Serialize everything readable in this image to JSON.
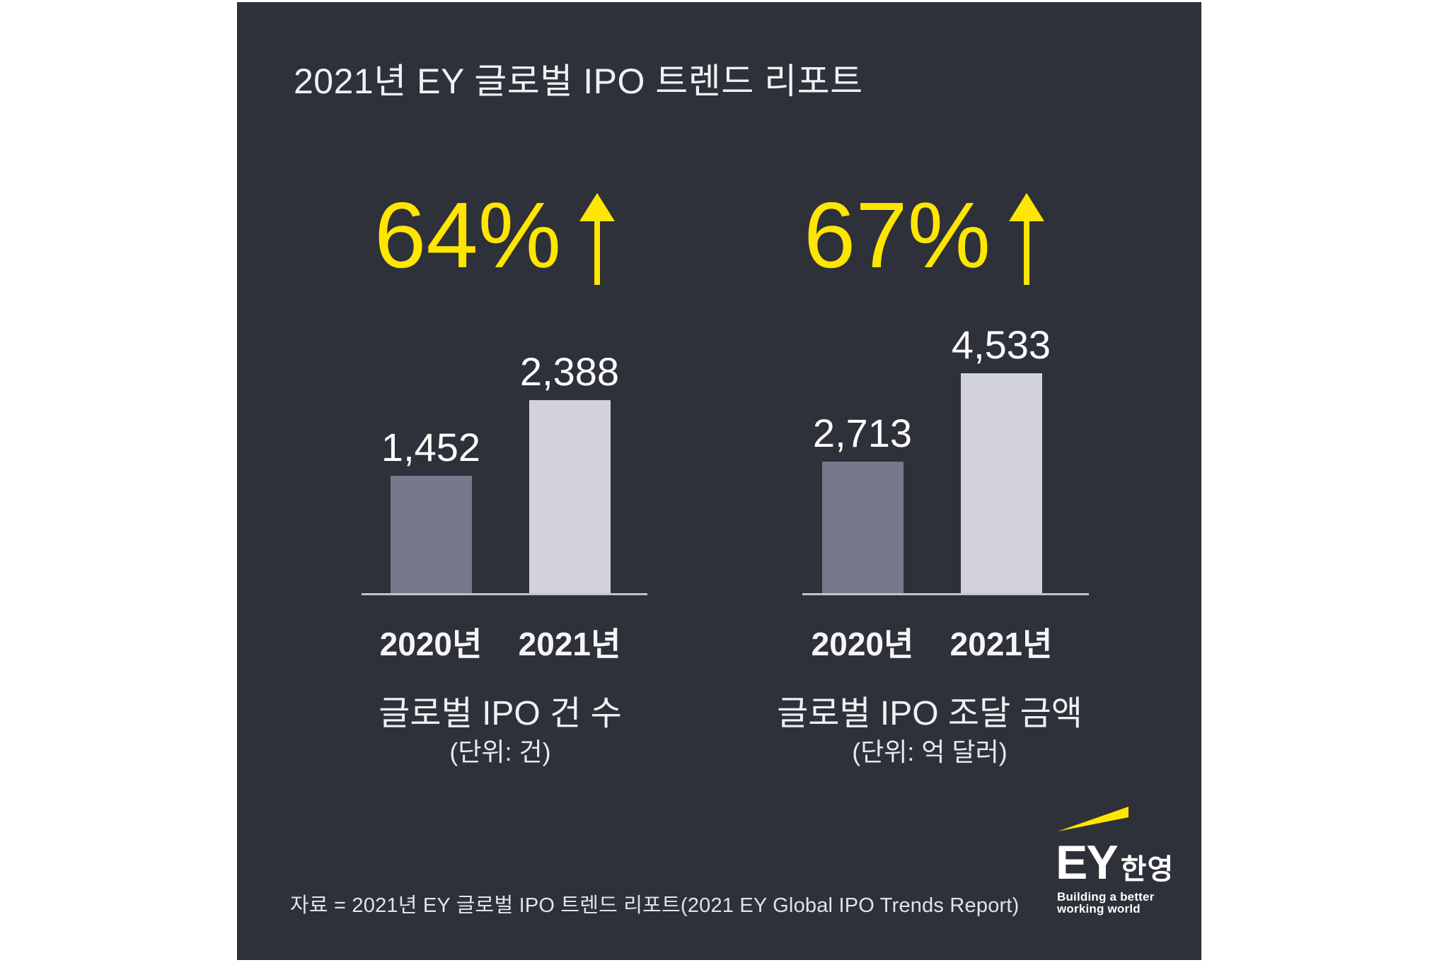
{
  "header": {
    "title": "2021년 EY 글로벌 IPO 트렌드 리포트"
  },
  "colors": {
    "page_background": "#ffffff",
    "card_background": "#2e303a",
    "accent_yellow": "#ffe600",
    "bar_2020": "#77778e",
    "bar_2021": "#d2d2da",
    "axis_line": "#c2c3cc",
    "text": "#ffffff"
  },
  "chart_data": [
    {
      "type": "bar",
      "title": "글로벌 IPO 건 수",
      "unit": "(단위: 건)",
      "change_label": "64%",
      "change_direction": "up",
      "categories": [
        "2020년",
        "2021년"
      ],
      "values": [
        1452,
        2388
      ],
      "value_labels": [
        "1,452",
        "2,388"
      ],
      "bar_colors": [
        "#77778e",
        "#d2d2da"
      ],
      "legend": "none",
      "grid": "off"
    },
    {
      "type": "bar",
      "title": "글로벌 IPO 조달 금액",
      "unit": "(단위: 억 달러)",
      "change_label": "67%",
      "change_direction": "up",
      "categories": [
        "2020년",
        "2021년"
      ],
      "values": [
        2713,
        4533
      ],
      "value_labels": [
        "2,713",
        "4,533"
      ],
      "bar_colors": [
        "#77778e",
        "#d2d2da"
      ],
      "legend": "none",
      "grid": "off"
    }
  ],
  "footer": {
    "source": "자료 = 2021년 EY 글로벌 IPO 트렌드 리포트(2021 EY Global IPO Trends Report)"
  },
  "logo": {
    "brand": "EY",
    "brand_suffix": "한영",
    "tagline_line1": "Building a better",
    "tagline_line2": "working world"
  }
}
